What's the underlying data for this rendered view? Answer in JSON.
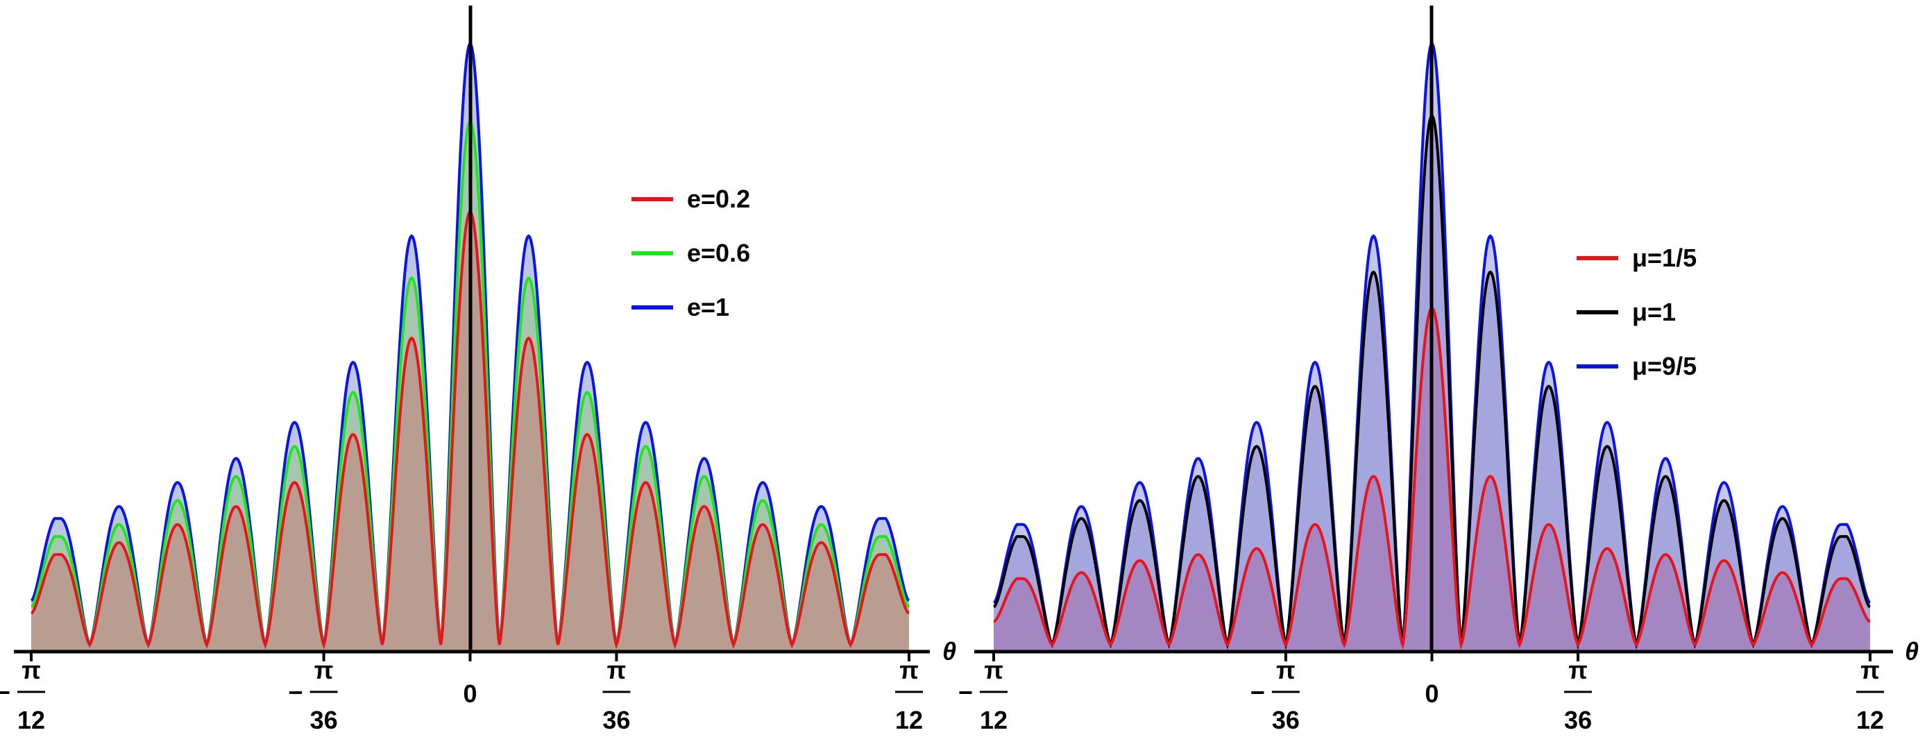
{
  "chart_data": [
    {
      "type": "area",
      "xlabel": "θ",
      "xlim": [
        -0.2618,
        0.2618
      ],
      "ylim": [
        0,
        1.15
      ],
      "x_ticks": [
        {
          "value": -0.2618,
          "sign": "−",
          "num": "π",
          "den": "12"
        },
        {
          "value": -0.0873,
          "sign": "−",
          "num": "π",
          "den": "36"
        },
        {
          "value": 0,
          "sign": "",
          "num": "",
          "den": "",
          "plain": "0"
        },
        {
          "value": 0.0873,
          "sign": "",
          "num": "π",
          "den": "36"
        },
        {
          "value": 0.2618,
          "sign": "",
          "num": "π",
          "den": "12"
        }
      ],
      "legend_position": "upper-right of center",
      "fill_style": "overlapping translucent fills under each curve",
      "peaks_x": [
        -0.2618,
        -0.2213,
        -0.1814,
        -0.1414,
        -0.0873,
        -0.048,
        0,
        0.048,
        0.0873,
        0.1414,
        0.1814,
        0.2213,
        0.2618
      ],
      "series": [
        {
          "name": "e=0.2",
          "color": "#e8141b",
          "fill": "#bf8f86",
          "peaks": [
            0.1,
            0.16,
            0.18,
            0.2,
            0.23,
            0.27,
            0.35,
            0.51,
            0.72,
            0.51,
            0.35,
            0.27,
            0.23,
            0.2,
            0.18,
            0.16,
            0.1
          ],
          "peak_values": [
            0.1,
            0.16,
            0.18,
            0.2,
            0.23,
            0.27,
            0.35,
            0.51,
            0.72,
            0.51,
            0.35,
            0.27,
            0.23,
            0.2,
            0.18,
            0.16,
            0.1
          ],
          "peak_x": [
            -0.2618,
            -0.2422,
            -0.2213,
            -0.2017,
            -0.1814,
            -0.1414,
            -0.0873,
            -0.048,
            0,
            0.048,
            0.0873,
            0.1414,
            0.1814,
            0.2017,
            0.2213,
            0.2422,
            0.2618
          ],
          "curve_peaks": [
            0.15,
            0.17,
            0.2,
            0.23,
            0.27,
            0.35,
            0.51,
            0.72,
            0.51,
            0.35,
            0.27,
            0.23,
            0.2,
            0.17,
            0.15
          ]
        },
        {
          "name": "e=0.6",
          "color": "#1fe61c",
          "fill": "#9fc79e",
          "curve_peaks": [
            0.18,
            0.2,
            0.24,
            0.28,
            0.33,
            0.42,
            0.61,
            0.87,
            0.61,
            0.42,
            0.33,
            0.28,
            0.24,
            0.2,
            0.18
          ]
        },
        {
          "name": "e=1",
          "color": "#0a14e6",
          "fill": "#a7b3d9",
          "curve_peaks": [
            0.21,
            0.23,
            0.27,
            0.31,
            0.37,
            0.47,
            0.68,
            1.0,
            0.68,
            0.47,
            0.37,
            0.31,
            0.27,
            0.23,
            0.21
          ]
        }
      ]
    },
    {
      "type": "area",
      "xlabel": "θ",
      "xlim": [
        -0.2618,
        0.2618
      ],
      "ylim": [
        0,
        1.15
      ],
      "x_ticks": [
        {
          "value": -0.2618,
          "sign": "−",
          "num": "π",
          "den": "12"
        },
        {
          "value": -0.0873,
          "sign": "−",
          "num": "π",
          "den": "36"
        },
        {
          "value": 0,
          "sign": "",
          "num": "",
          "den": "",
          "plain": "0"
        },
        {
          "value": 0.0873,
          "sign": "",
          "num": "π",
          "den": "36"
        },
        {
          "value": 0.2618,
          "sign": "",
          "num": "π",
          "den": "12"
        }
      ],
      "legend_position": "right",
      "fill_style": "overlapping translucent fills under each curve",
      "series": [
        {
          "name": "μ=1/5",
          "color": "#e8141b",
          "fill": "#a47cb8",
          "curve_peaks": [
            0.11,
            0.12,
            0.14,
            0.15,
            0.16,
            0.2,
            0.28,
            0.56,
            0.28,
            0.2,
            0.16,
            0.15,
            0.14,
            0.12,
            0.11
          ]
        },
        {
          "name": "μ=1",
          "color": "#000000",
          "fill": "#9b9bd8",
          "curve_peaks": [
            0.18,
            0.21,
            0.24,
            0.28,
            0.33,
            0.43,
            0.62,
            0.88,
            0.62,
            0.43,
            0.33,
            0.28,
            0.24,
            0.21,
            0.18
          ]
        },
        {
          "name": "μ=9/5",
          "color": "#0a14e6",
          "fill": "#b0b3e3",
          "curve_peaks": [
            0.2,
            0.23,
            0.27,
            0.31,
            0.37,
            0.47,
            0.68,
            1.0,
            0.68,
            0.47,
            0.37,
            0.31,
            0.27,
            0.23,
            0.2
          ]
        }
      ]
    }
  ]
}
